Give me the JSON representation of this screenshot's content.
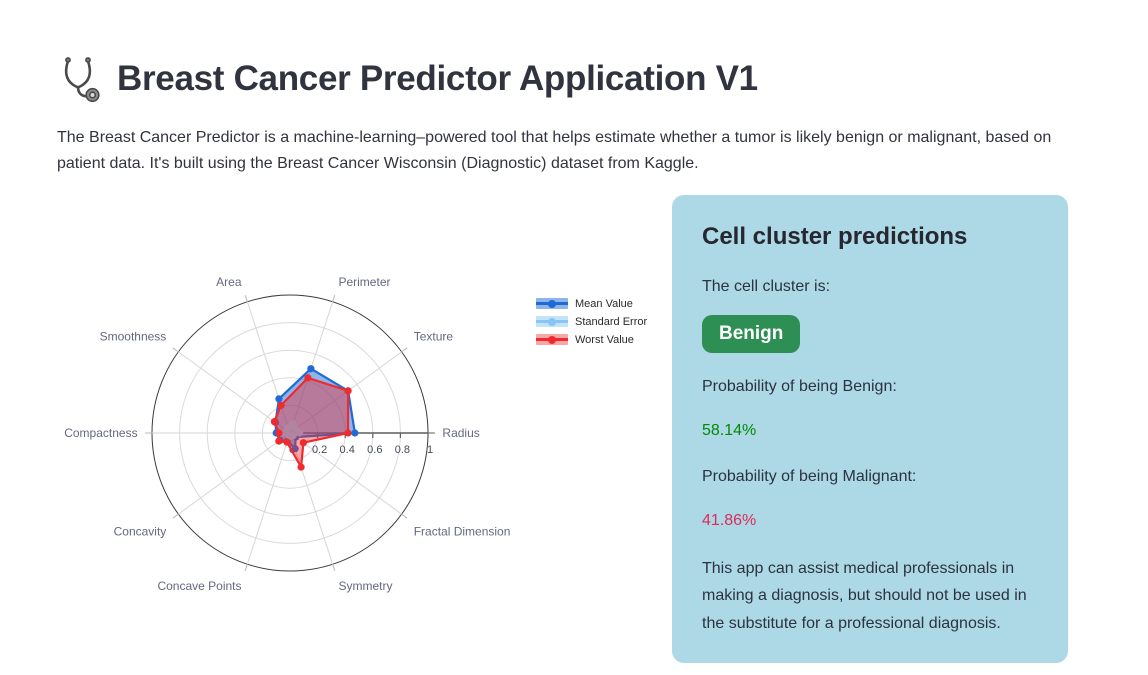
{
  "app": {
    "title": "Breast Cancer Predictor Application V1",
    "title_icon": "stethoscope-icon",
    "description": "The Breast Cancer Predictor is a machine-learning–powered tool that helps estimate whether a tumor is likely benign or malignant, based on patient data. It's built using the Breast Cancer Wisconsin (Diagnostic) dataset from Kaggle."
  },
  "chart_data": {
    "type": "radar",
    "categories": [
      "Radius",
      "Texture",
      "Perimeter",
      "Area",
      "Smoothness",
      "Compactness",
      "Concavity",
      "Concave Points",
      "Symmetry",
      "Fractal Dimension"
    ],
    "series": [
      {
        "name": "Mean Value",
        "color": "#1F6AD4",
        "fill": "rgba(31,106,212,0.50)",
        "values": [
          0.47,
          0.52,
          0.49,
          0.26,
          0.13,
          0.1,
          0.09,
          0.06,
          0.12,
          0.05
        ]
      },
      {
        "name": "Standard Error",
        "color": "#85C7F2",
        "fill": "rgba(133,199,242,0.50)",
        "values": [
          0.07,
          0.05,
          0.07,
          0.04,
          0.03,
          0.03,
          0.02,
          0.02,
          0.03,
          0.03
        ]
      },
      {
        "name": "Worst Value",
        "color": "#EF2B2D",
        "fill": "rgba(239,43,45,0.42)",
        "values": [
          0.42,
          0.52,
          0.42,
          0.21,
          0.14,
          0.08,
          0.1,
          0.07,
          0.26,
          0.12
        ]
      }
    ],
    "radial_ticks": [
      "0",
      "0.2",
      "0.4",
      "0.6",
      "0.8",
      "1"
    ],
    "rlim": [
      0,
      1
    ],
    "grid": true,
    "legend_position": "right-top",
    "colors": {
      "grid": "#DADADA",
      "outer_ring": "#3B3B3B",
      "spoke": "#D6D6D6",
      "radial_axis": "#5E5E5E"
    }
  },
  "prediction_card": {
    "title": "Cell cluster predictions",
    "intro": "The cell cluster is:",
    "diagnosis": "Benign",
    "benign_label": "Probability of being Benign:",
    "benign_probability": "58.14%",
    "malignant_label": "Probability of being Malignant:",
    "malignant_probability": "41.86%",
    "disclaimer": "This app can assist medical professionals in making a diagnosis, but should not be used in the substitute for a professional diagnosis.",
    "colors": {
      "card_bg": "#ADD8E6",
      "badge_bg": "#2E8F54",
      "benign_text": "#038A03",
      "malignant_text": "#DC2C5A"
    }
  }
}
